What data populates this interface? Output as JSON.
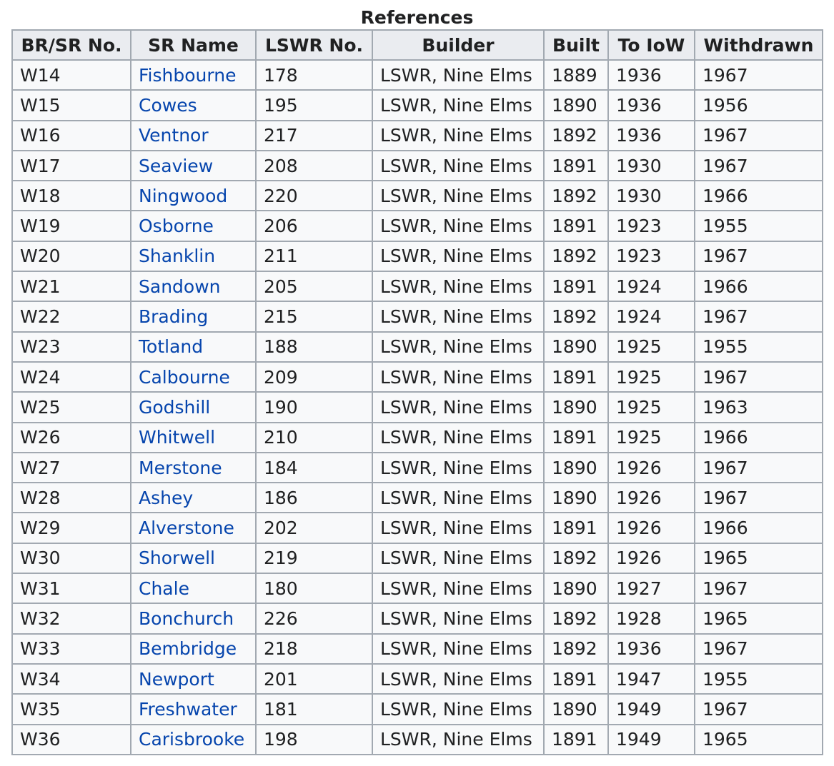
{
  "caption": "References",
  "columns": [
    "BR/SR No.",
    "SR Name",
    "LSWR No.",
    "Builder",
    "Built",
    "To IoW",
    "Withdrawn"
  ],
  "link_color": "#0645ad",
  "rows": [
    {
      "no": "W14",
      "name": "Fishbourne",
      "lswr": "178",
      "builder": "LSWR, Nine Elms",
      "built": "1889",
      "to_iow": "1936",
      "withdrawn": "1967"
    },
    {
      "no": "W15",
      "name": "Cowes",
      "lswr": "195",
      "builder": "LSWR, Nine Elms",
      "built": "1890",
      "to_iow": "1936",
      "withdrawn": "1956"
    },
    {
      "no": "W16",
      "name": "Ventnor",
      "lswr": "217",
      "builder": "LSWR, Nine Elms",
      "built": "1892",
      "to_iow": "1936",
      "withdrawn": "1967"
    },
    {
      "no": "W17",
      "name": "Seaview",
      "lswr": "208",
      "builder": "LSWR, Nine Elms",
      "built": "1891",
      "to_iow": "1930",
      "withdrawn": "1967"
    },
    {
      "no": "W18",
      "name": "Ningwood",
      "lswr": "220",
      "builder": "LSWR, Nine Elms",
      "built": "1892",
      "to_iow": "1930",
      "withdrawn": "1966"
    },
    {
      "no": "W19",
      "name": "Osborne",
      "lswr": "206",
      "builder": "LSWR, Nine Elms",
      "built": "1891",
      "to_iow": "1923",
      "withdrawn": "1955"
    },
    {
      "no": "W20",
      "name": "Shanklin",
      "lswr": "211",
      "builder": "LSWR, Nine Elms",
      "built": "1892",
      "to_iow": "1923",
      "withdrawn": "1967"
    },
    {
      "no": "W21",
      "name": "Sandown",
      "lswr": "205",
      "builder": "LSWR, Nine Elms",
      "built": "1891",
      "to_iow": "1924",
      "withdrawn": "1966"
    },
    {
      "no": "W22",
      "name": "Brading",
      "lswr": "215",
      "builder": "LSWR, Nine Elms",
      "built": "1892",
      "to_iow": "1924",
      "withdrawn": "1967"
    },
    {
      "no": "W23",
      "name": "Totland",
      "lswr": "188",
      "builder": "LSWR, Nine Elms",
      "built": "1890",
      "to_iow": "1925",
      "withdrawn": "1955"
    },
    {
      "no": "W24",
      "name": "Calbourne",
      "lswr": "209",
      "builder": "LSWR, Nine Elms",
      "built": "1891",
      "to_iow": "1925",
      "withdrawn": "1967"
    },
    {
      "no": "W25",
      "name": "Godshill",
      "lswr": "190",
      "builder": "LSWR, Nine Elms",
      "built": "1890",
      "to_iow": "1925",
      "withdrawn": "1963"
    },
    {
      "no": "W26",
      "name": "Whitwell",
      "lswr": "210",
      "builder": "LSWR, Nine Elms",
      "built": "1891",
      "to_iow": "1925",
      "withdrawn": "1966"
    },
    {
      "no": "W27",
      "name": "Merstone",
      "lswr": "184",
      "builder": "LSWR, Nine Elms",
      "built": "1890",
      "to_iow": "1926",
      "withdrawn": "1967"
    },
    {
      "no": "W28",
      "name": "Ashey",
      "lswr": "186",
      "builder": "LSWR, Nine Elms",
      "built": "1890",
      "to_iow": "1926",
      "withdrawn": "1967"
    },
    {
      "no": "W29",
      "name": "Alverstone",
      "lswr": "202",
      "builder": "LSWR, Nine Elms",
      "built": "1891",
      "to_iow": "1926",
      "withdrawn": "1966"
    },
    {
      "no": "W30",
      "name": "Shorwell",
      "lswr": "219",
      "builder": "LSWR, Nine Elms",
      "built": "1892",
      "to_iow": "1926",
      "withdrawn": "1965"
    },
    {
      "no": "W31",
      "name": "Chale",
      "lswr": "180",
      "builder": "LSWR, Nine Elms",
      "built": "1890",
      "to_iow": "1927",
      "withdrawn": "1967"
    },
    {
      "no": "W32",
      "name": "Bonchurch",
      "lswr": "226",
      "builder": "LSWR, Nine Elms",
      "built": "1892",
      "to_iow": "1928",
      "withdrawn": "1965"
    },
    {
      "no": "W33",
      "name": "Bembridge",
      "lswr": "218",
      "builder": "LSWR, Nine Elms",
      "built": "1892",
      "to_iow": "1936",
      "withdrawn": "1967"
    },
    {
      "no": "W34",
      "name": "Newport",
      "lswr": "201",
      "builder": "LSWR, Nine Elms",
      "built": "1891",
      "to_iow": "1947",
      "withdrawn": "1955"
    },
    {
      "no": "W35",
      "name": "Freshwater",
      "lswr": "181",
      "builder": "LSWR, Nine Elms",
      "built": "1890",
      "to_iow": "1949",
      "withdrawn": "1967"
    },
    {
      "no": "W36",
      "name": "Carisbrooke",
      "lswr": "198",
      "builder": "LSWR, Nine Elms",
      "built": "1891",
      "to_iow": "1949",
      "withdrawn": "1965"
    }
  ]
}
